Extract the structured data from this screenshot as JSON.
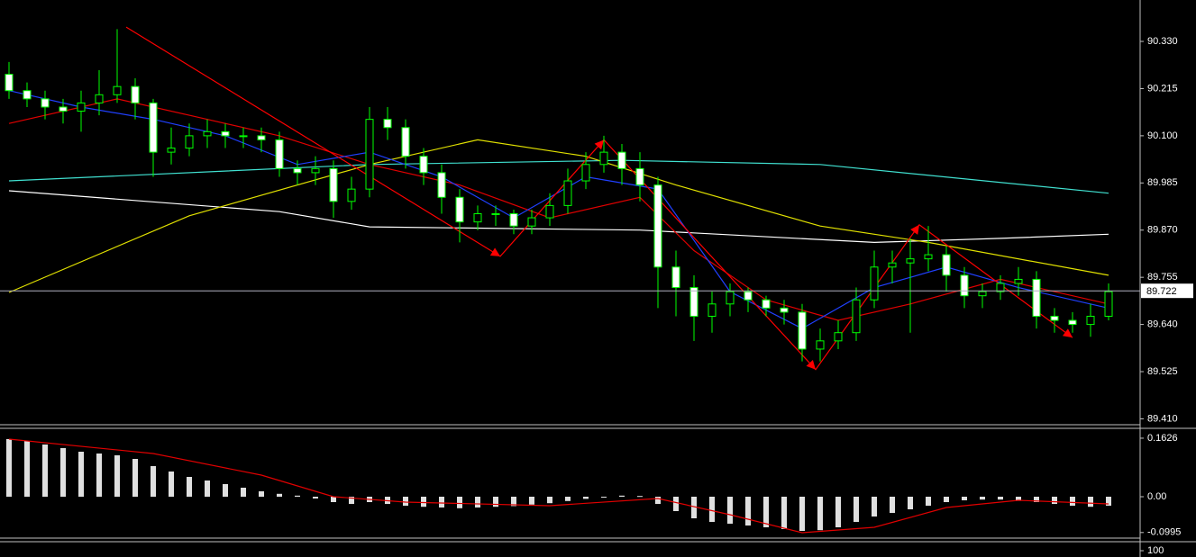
{
  "chart_data": [
    {
      "type": "candlestick",
      "ylim": [
        89.4,
        90.42
      ],
      "yticks": [
        {
          "value": 90.33,
          "label": "90.330"
        },
        {
          "value": 90.215,
          "label": "90.215"
        },
        {
          "value": 90.1,
          "label": "90.100"
        },
        {
          "value": 89.985,
          "label": "89.985"
        },
        {
          "value": 89.87,
          "label": "89.870"
        },
        {
          "value": 89.755,
          "label": "89.755"
        },
        {
          "value": 89.64,
          "label": "89.640"
        },
        {
          "value": 89.525,
          "label": "89.525"
        },
        {
          "value": 89.41,
          "label": "89.410"
        }
      ],
      "current_price": 89.722,
      "up_color": "#000000",
      "down_color": "#ffffff",
      "wick_color": "#00ff00",
      "open": [
        90.25,
        90.21,
        90.19,
        90.17,
        90.16,
        90.18,
        90.2,
        90.22,
        90.18,
        90.06,
        90.07,
        90.1,
        90.11,
        90.1,
        90.1,
        90.09,
        90.02,
        90.01,
        90.02,
        89.94,
        89.97,
        90.14,
        90.12,
        90.05,
        90.01,
        89.95,
        89.89,
        89.91,
        89.91,
        89.88,
        89.9,
        89.93,
        89.99,
        90.03,
        90.06,
        90.02,
        89.98,
        89.78,
        89.73,
        89.66,
        89.69,
        89.72,
        89.7,
        89.68,
        89.67,
        89.58,
        89.6,
        89.62,
        89.7,
        89.78,
        89.79,
        89.8,
        89.81,
        89.76,
        89.71,
        89.72,
        89.74,
        89.75,
        89.66,
        89.65,
        89.64,
        89.66
      ],
      "high": [
        90.28,
        90.23,
        90.21,
        90.19,
        90.21,
        90.26,
        90.36,
        90.24,
        90.19,
        90.12,
        90.13,
        90.14,
        90.13,
        90.12,
        90.12,
        90.11,
        90.04,
        90.05,
        90.04,
        90.0,
        90.17,
        90.17,
        90.14,
        90.07,
        90.03,
        89.97,
        89.93,
        89.93,
        89.92,
        89.92,
        89.96,
        90.02,
        90.06,
        90.1,
        90.08,
        90.06,
        90.0,
        89.82,
        89.76,
        89.72,
        89.74,
        89.73,
        89.71,
        89.7,
        89.69,
        89.63,
        89.65,
        89.73,
        89.82,
        89.82,
        89.85,
        89.88,
        89.83,
        89.78,
        89.74,
        89.76,
        89.78,
        89.77,
        89.68,
        89.67,
        89.69,
        89.74
      ],
      "low": [
        90.19,
        90.17,
        90.14,
        90.13,
        90.11,
        90.15,
        90.18,
        90.14,
        90.0,
        90.03,
        90.05,
        90.07,
        90.07,
        90.07,
        90.06,
        90.0,
        89.98,
        89.98,
        89.9,
        89.92,
        89.95,
        90.09,
        90.02,
        89.98,
        89.91,
        89.84,
        89.87,
        89.88,
        89.86,
        89.86,
        89.88,
        89.91,
        89.97,
        90.01,
        89.98,
        89.94,
        89.68,
        89.66,
        89.6,
        89.62,
        89.66,
        89.67,
        89.66,
        89.64,
        89.55,
        89.55,
        89.58,
        89.6,
        89.68,
        89.74,
        89.62,
        89.77,
        89.72,
        89.68,
        89.68,
        89.7,
        89.71,
        89.63,
        89.62,
        89.62,
        89.61,
        89.65
      ],
      "close": [
        90.21,
        90.19,
        90.17,
        90.16,
        90.18,
        90.2,
        90.22,
        90.18,
        90.06,
        90.07,
        90.1,
        90.11,
        90.1,
        90.1,
        90.09,
        90.02,
        90.01,
        90.02,
        89.94,
        89.97,
        90.14,
        90.12,
        90.05,
        90.01,
        89.95,
        89.89,
        89.91,
        89.91,
        89.88,
        89.9,
        89.93,
        89.99,
        90.03,
        90.06,
        90.02,
        89.98,
        89.78,
        89.73,
        89.66,
        89.69,
        89.72,
        89.7,
        89.68,
        89.67,
        89.58,
        89.6,
        89.62,
        89.7,
        89.78,
        89.79,
        89.8,
        89.81,
        89.76,
        89.71,
        89.72,
        89.74,
        89.75,
        89.66,
        89.65,
        89.64,
        89.66,
        89.72
      ],
      "series": [
        {
          "color": "#ffffff",
          "x": [
            0,
            15,
            20,
            35,
            48,
            55,
            61
          ],
          "values": [
            89.966,
            89.915,
            89.878,
            89.87,
            89.84,
            89.85,
            89.86
          ]
        },
        {
          "color": "#40e0d0",
          "x": [
            0,
            20,
            34,
            45,
            61
          ],
          "values": [
            89.99,
            90.03,
            90.04,
            90.03,
            89.96
          ]
        },
        {
          "color": "#e0e000",
          "x": [
            0,
            10,
            20,
            26,
            32,
            37,
            45,
            51,
            61
          ],
          "values": [
            89.718,
            89.905,
            90.03,
            90.09,
            90.05,
            89.98,
            89.88,
            89.84,
            89.76
          ]
        },
        {
          "color": "#e00000",
          "x": [
            0,
            6,
            10,
            15,
            20,
            25,
            30,
            35,
            38,
            42,
            46,
            50,
            55,
            61
          ],
          "values": [
            90.13,
            90.19,
            90.15,
            90.1,
            90.03,
            89.98,
            89.9,
            89.95,
            89.82,
            89.7,
            89.65,
            89.69,
            89.75,
            89.69
          ]
        },
        {
          "color": "#2040ff",
          "x": [
            0,
            4,
            8,
            12,
            16,
            20,
            24,
            28,
            32,
            36,
            40,
            44,
            48,
            52,
            56,
            61
          ],
          "values": [
            90.21,
            90.17,
            90.14,
            90.1,
            90.03,
            90.06,
            90.0,
            89.9,
            90.0,
            89.97,
            89.72,
            89.63,
            89.73,
            89.78,
            89.73,
            89.68
          ]
        },
        {
          "color": "#ff0000",
          "markers": "arrow",
          "x": [
            6.5,
            27.25,
            33,
            44.75,
            50.5,
            59
          ],
          "values": [
            90.365,
            89.806,
            90.09,
            89.53,
            89.883,
            89.608
          ]
        }
      ]
    },
    {
      "type": "histogram",
      "ylim": [
        -0.115,
        0.185
      ],
      "yticks": [
        0.1626,
        {
          "value": 0,
          "label": "0.00"
        },
        -0.0995
      ],
      "color": "#e0e0e0",
      "values": [
        0.16,
        0.155,
        0.145,
        0.135,
        0.125,
        0.12,
        0.115,
        0.105,
        0.085,
        0.07,
        0.055,
        0.045,
        0.035,
        0.025,
        0.015,
        0.008,
        0.003,
        -0.005,
        -0.015,
        -0.02,
        -0.015,
        -0.02,
        -0.025,
        -0.028,
        -0.03,
        -0.032,
        -0.03,
        -0.028,
        -0.026,
        -0.022,
        -0.018,
        -0.012,
        -0.006,
        -0.002,
        0.003,
        0.002,
        -0.02,
        -0.04,
        -0.06,
        -0.07,
        -0.075,
        -0.08,
        -0.085,
        -0.09,
        -0.095,
        -0.093,
        -0.085,
        -0.07,
        -0.055,
        -0.045,
        -0.035,
        -0.025,
        -0.015,
        -0.01,
        -0.008,
        -0.008,
        -0.01,
        -0.015,
        -0.02,
        -0.025,
        -0.028,
        -0.025
      ],
      "series": [
        {
          "color": "#e00000",
          "x": [
            0,
            8,
            14,
            18,
            22,
            30,
            36,
            40,
            44,
            48,
            52,
            56,
            61
          ],
          "values": [
            0.16,
            0.12,
            0.06,
            0.0,
            -0.015,
            -0.025,
            -0.005,
            -0.05,
            -0.1,
            -0.085,
            -0.03,
            -0.01,
            -0.02
          ]
        }
      ]
    },
    {
      "type": "line",
      "yticks": [
        100
      ]
    }
  ]
}
